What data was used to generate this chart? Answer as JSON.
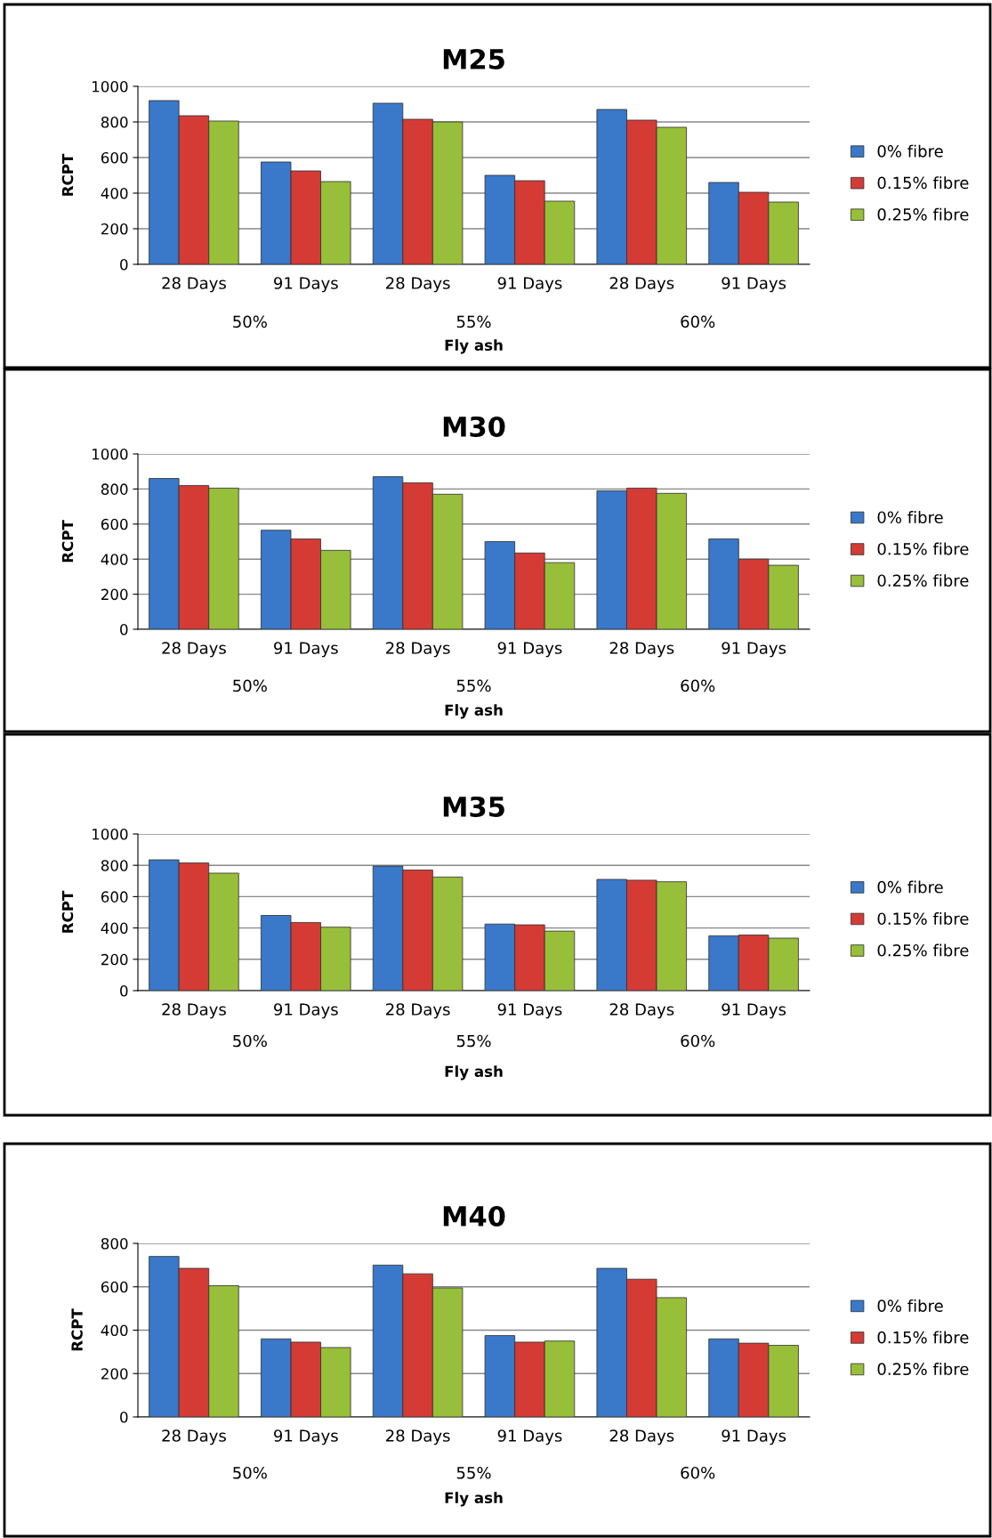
{
  "chart_data": [
    {
      "type": "bar",
      "title": "M25",
      "ylabel": "RCPT",
      "xlabel": "Fly ash",
      "categories": [
        "28 Days",
        "91 Days",
        "28 Days",
        "91 Days",
        "28 Days",
        "91 Days"
      ],
      "annotations": [
        "50%",
        "55%",
        "60%"
      ],
      "ylim": [
        0,
        1000
      ],
      "yticks": [
        0,
        200,
        400,
        600,
        800,
        1000
      ],
      "grid": "y",
      "legend": "right",
      "series": [
        {
          "name": "0% fibre",
          "color": "#3a78c9",
          "values": [
            920,
            575,
            905,
            500,
            870,
            460
          ]
        },
        {
          "name": "0.15% fibre",
          "color": "#d43b35",
          "values": [
            835,
            525,
            815,
            470,
            810,
            405
          ]
        },
        {
          "name": "0.25% fibre",
          "color": "#98bf3a",
          "values": [
            805,
            465,
            800,
            355,
            770,
            350
          ]
        }
      ]
    },
    {
      "type": "bar",
      "title": "M30",
      "ylabel": "RCPT",
      "xlabel": "Fly ash",
      "categories": [
        "28 Days",
        "91 Days",
        "28 Days",
        "91 Days",
        "28 Days",
        "91 Days"
      ],
      "annotations": [
        "50%",
        "55%",
        "60%"
      ],
      "ylim": [
        0,
        1000
      ],
      "yticks": [
        0,
        200,
        400,
        600,
        800,
        1000
      ],
      "grid": "y",
      "legend": "right",
      "series": [
        {
          "name": "0% fibre",
          "color": "#3a78c9",
          "values": [
            860,
            565,
            870,
            500,
            790,
            515
          ]
        },
        {
          "name": "0.15% fibre",
          "color": "#d43b35",
          "values": [
            820,
            515,
            835,
            435,
            805,
            400
          ]
        },
        {
          "name": "0.25% fibre",
          "color": "#98bf3a",
          "values": [
            805,
            450,
            770,
            380,
            775,
            365
          ]
        }
      ]
    },
    {
      "type": "bar",
      "title": "M35",
      "ylabel": "RCPT",
      "xlabel": "Fly ash",
      "categories": [
        "28 Days",
        "91 Days",
        "28 Days",
        "91 Days",
        "28 Days",
        "91 Days"
      ],
      "annotations": [
        "50%",
        "55%",
        "60%"
      ],
      "ylim": [
        0,
        1000
      ],
      "yticks": [
        0,
        200,
        400,
        600,
        800,
        1000
      ],
      "grid": "y",
      "legend": "right",
      "series": [
        {
          "name": "0% fibre",
          "color": "#3a78c9",
          "values": [
            835,
            480,
            795,
            425,
            710,
            350
          ]
        },
        {
          "name": "0.15% fibre",
          "color": "#d43b35",
          "values": [
            815,
            435,
            770,
            420,
            705,
            355
          ]
        },
        {
          "name": "0.25% fibre",
          "color": "#98bf3a",
          "values": [
            750,
            405,
            725,
            380,
            695,
            335
          ]
        }
      ]
    },
    {
      "type": "bar",
      "title": "M40",
      "ylabel": "RCPT",
      "xlabel": "Fly ash",
      "categories": [
        "28 Days",
        "91 Days",
        "28 Days",
        "91 Days",
        "28 Days",
        "91 Days"
      ],
      "annotations": [
        "50%",
        "55%",
        "60%"
      ],
      "ylim": [
        0,
        800
      ],
      "yticks": [
        0,
        200,
        400,
        600,
        800
      ],
      "grid": "y",
      "legend": "right",
      "series": [
        {
          "name": "0% fibre",
          "color": "#3a78c9",
          "values": [
            740,
            360,
            700,
            375,
            685,
            360
          ]
        },
        {
          "name": "0.15% fibre",
          "color": "#d43b35",
          "values": [
            685,
            345,
            660,
            345,
            635,
            340
          ]
        },
        {
          "name": "0.25% fibre",
          "color": "#98bf3a",
          "values": [
            605,
            320,
            595,
            350,
            550,
            330
          ]
        }
      ]
    }
  ]
}
